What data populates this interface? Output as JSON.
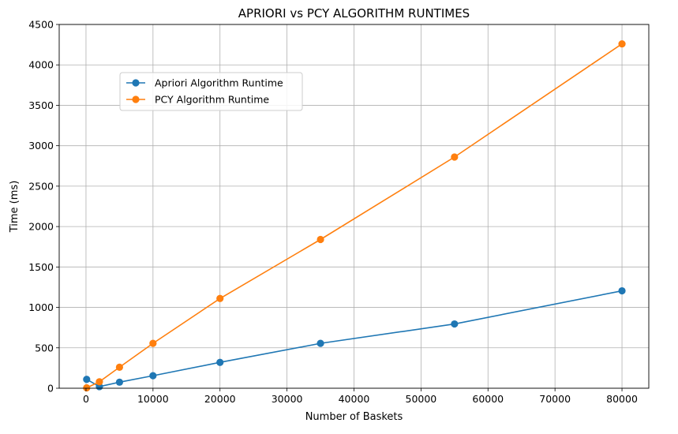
{
  "chart_data": {
    "type": "line",
    "title": "APRIORI vs PCY ALGORITHM RUNTIMES",
    "xlabel": "Number of Baskets",
    "ylabel": "Time (ms)",
    "xlim": [
      -4000,
      84000
    ],
    "ylim": [
      0,
      4500
    ],
    "xticks": [
      0,
      10000,
      20000,
      30000,
      40000,
      50000,
      60000,
      70000,
      80000
    ],
    "yticks": [
      0,
      500,
      1000,
      1500,
      2000,
      2500,
      3000,
      3500,
      4000,
      4500
    ],
    "grid": true,
    "legend_position": "upper-left",
    "x": [
      100,
      2000,
      5000,
      10000,
      20000,
      35000,
      55000,
      80000
    ],
    "series": [
      {
        "name": "Apriori Algorithm Runtime",
        "color": "#1f77b4",
        "values": [
          110,
          20,
          75,
          155,
          320,
          555,
          795,
          1205
        ]
      },
      {
        "name": "PCY Algorithm Runtime",
        "color": "#ff7f0e",
        "values": [
          5,
          80,
          260,
          555,
          1110,
          1840,
          2860,
          4260
        ]
      }
    ]
  }
}
